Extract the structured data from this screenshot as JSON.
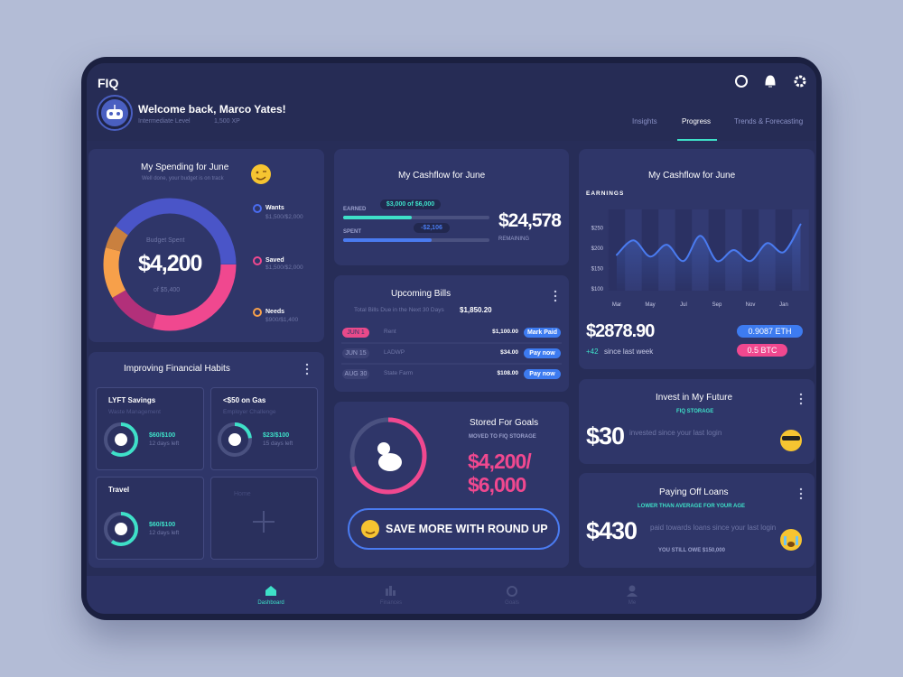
{
  "header": {
    "logo": "FIQ",
    "welcome": "Welcome back, Marco Yates!",
    "level": "Intermediate Level",
    "xp": "1,500 XP"
  },
  "tabs": [
    "Insights",
    "Progress",
    "Trends & Forecasting"
  ],
  "spending": {
    "title": "My Spending for June",
    "subtitle": "Well done, your budget is on track",
    "center_label": "Budget Spent",
    "amount": "$4,200",
    "of": "of $5,400",
    "legend": [
      {
        "name": "Wants",
        "value": "$1,500/$2,000"
      },
      {
        "name": "Saved",
        "value": "$1,500/$2,000"
      },
      {
        "name": "Needs",
        "value": "$900/$1,400"
      }
    ]
  },
  "habits": {
    "title": "Improving Financial Habits",
    "items": [
      {
        "title": "LYFT Savings",
        "subtitle": "Waste Management",
        "amount": "$60/$100",
        "days": "12 days left"
      },
      {
        "title": "<$50 on Gas",
        "subtitle": "Employer Challenge",
        "amount": "$23/$100",
        "days": "15 days left"
      },
      {
        "title": "Travel",
        "amount": "$60/$100",
        "days": "12 days left"
      }
    ],
    "add": "Home"
  },
  "cashflow": {
    "title": "My Cashflow for June",
    "earned_label": "EARNED",
    "earned": "$3,000 of $6,000",
    "spent_label": "SPENT",
    "spent": "-$2,106",
    "remaining": "$24,578",
    "remaining_label": "REMAINING"
  },
  "bills": {
    "title": "Upcoming Bills",
    "total_label": "Total Bills Due in the Next 30 Days",
    "total": "$1,850.20",
    "rows": [
      {
        "date": "JUN 1",
        "name": "Rent",
        "amount": "$1,100.00",
        "action": "Mark Paid"
      },
      {
        "date": "JUN 15",
        "name": "LADWP",
        "amount": "$34.00",
        "action": "Pay now"
      },
      {
        "date": "AUG 30",
        "name": "State Farm",
        "amount": "$108.00",
        "action": "Pay now"
      }
    ]
  },
  "goals": {
    "title": "Stored For Goals",
    "subtitle": "MOVED TO FIQ STORAGE",
    "amount": "$4,200/$6,000",
    "button": "SAVE MORE WITH ROUND UP"
  },
  "earnings": {
    "title": "My Cashflow for June",
    "label": "EARNINGS",
    "amount": "$2878.90",
    "change": "+42",
    "change_label": "since last week",
    "eth": "0.9087 ETH",
    "btc": "0.5 BTC"
  },
  "chart_data": {
    "type": "line",
    "categories": [
      "Mar",
      null,
      "May",
      null,
      "Jul",
      null,
      "Sep",
      null,
      "Nov",
      null,
      "Jan",
      null
    ],
    "series": [
      {
        "color": "#4a7bf0",
        "values": [
          183,
          219,
          179,
          208,
          168,
          230,
          168,
          195,
          168,
          212,
          190,
          258
        ]
      }
    ],
    "ylim": [
      95,
      295
    ],
    "yticks": [
      {
        "value": 250,
        "label": "$250"
      },
      {
        "value": 200,
        "label": "$200"
      },
      {
        "value": 150,
        "label": "$150"
      },
      {
        "value": 100,
        "label": "$100"
      }
    ]
  },
  "invest": {
    "title": "Invest in My Future",
    "subtitle": "FIQ STORAGE",
    "amount": "$30",
    "note": "invested since your last login"
  },
  "loans": {
    "title": "Paying Off Loans",
    "subtitle": "LOWER THAN AVERAGE FOR YOUR AGE",
    "amount": "$430",
    "note": "paid towards loans since your last login",
    "owe": "YOU STILL OWE $150,000"
  },
  "nav": [
    "Dashboard",
    "Finances",
    "Goals",
    "Me"
  ]
}
